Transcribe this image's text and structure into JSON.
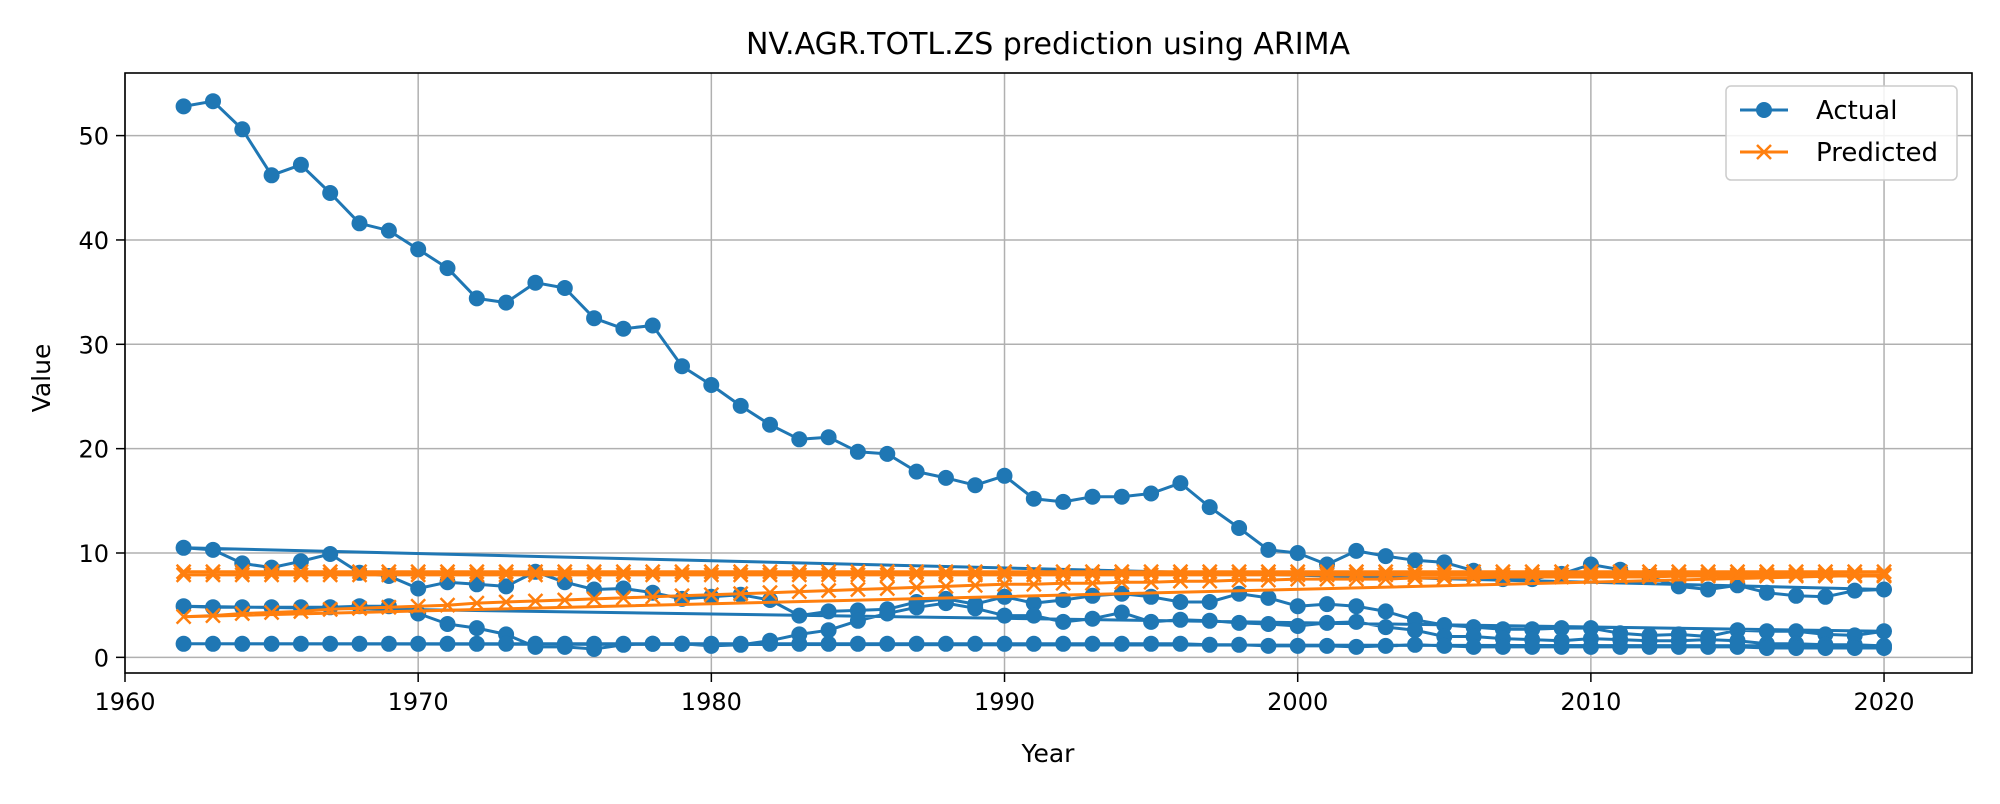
{
  "chart_data": {
    "type": "line",
    "title": "NV.AGR.TOTL.ZS prediction using ARIMA",
    "xlabel": "Year",
    "ylabel": "Value",
    "xlim": [
      1960,
      2023
    ],
    "ylim": [
      -1.5,
      56
    ],
    "xticks": [
      1960,
      1970,
      1980,
      1990,
      2000,
      2010,
      2020
    ],
    "yticks": [
      0,
      10,
      20,
      30,
      40,
      50
    ],
    "grid": true,
    "legend_position": "top-right",
    "colors": {
      "actual": "#1f77b4",
      "predicted": "#ff7f0e"
    },
    "actual": {
      "name": "Actual",
      "marker": "circle",
      "segments": [
        {
          "x": [
            1962,
            1963,
            1964,
            1965,
            1966,
            1967,
            1968,
            1969,
            1970,
            1971,
            1972,
            1973,
            1974,
            1975,
            1976,
            1977,
            1978,
            1979,
            1980,
            1981,
            1982,
            1983,
            1984,
            1985,
            1986,
            1987,
            1988,
            1989,
            1990,
            1991,
            1992,
            1993,
            1994,
            1995,
            1996,
            1997,
            1998,
            1999,
            2000,
            2001,
            2002,
            2003,
            2004,
            2005,
            2006,
            2007,
            2008,
            2009,
            2010,
            2011,
            2012,
            2013,
            2014,
            2015,
            2016,
            2017,
            2018,
            2019,
            2020
          ],
          "y": [
            52.8,
            53.3,
            50.6,
            46.2,
            47.2,
            44.5,
            41.6,
            40.9,
            39.1,
            37.3,
            34.4,
            34.0,
            35.9,
            35.4,
            32.5,
            31.5,
            31.8,
            27.9,
            26.1,
            24.1,
            22.3,
            20.9,
            21.1,
            19.7,
            19.5,
            17.8,
            17.2,
            16.5,
            17.4,
            15.2,
            14.9,
            15.4,
            15.4,
            15.7,
            16.7,
            14.4,
            12.4,
            10.3,
            10.0,
            8.9,
            10.2,
            9.7,
            9.3,
            9.1,
            8.3,
            7.5,
            7.5,
            8.0,
            8.9,
            8.4,
            7.7,
            6.8,
            6.5,
            6.9,
            6.2,
            5.9,
            5.8,
            6.4,
            6.5
          ]
        },
        {
          "x": [
            1962,
            1963,
            1964,
            1965,
            1966,
            1967,
            1968,
            1969,
            1970,
            1971,
            1972,
            1973,
            1974,
            1975,
            1976,
            1977,
            1978,
            1979,
            1980,
            1981,
            1982,
            1983,
            1984,
            1985,
            1986,
            1987,
            1988,
            1989,
            1990,
            1991,
            1992,
            1993,
            1994,
            1995,
            1996,
            1997,
            1998,
            1999,
            2000,
            2001,
            2002,
            2003,
            2004,
            2005,
            2006,
            2007,
            2008,
            2009,
            2010,
            2011,
            2012,
            2013,
            2014,
            2015,
            2016,
            2017,
            2018,
            2019,
            2020
          ],
          "y": [
            10.5,
            10.3,
            9.0,
            8.6,
            9.2,
            9.9,
            8.1,
            7.8,
            6.6,
            7.2,
            7.0,
            6.8,
            8.2,
            7.2,
            6.5,
            6.6,
            6.2,
            5.6,
            5.8,
            6.0,
            5.5,
            4.0,
            4.4,
            4.5,
            4.6,
            5.3,
            5.6,
            5.1,
            5.8,
            5.2,
            5.5,
            5.9,
            6.1,
            5.8,
            5.3,
            5.3,
            6.1,
            5.7,
            4.9,
            5.1,
            4.9,
            4.4,
            3.6,
            3.1,
            2.9,
            2.7,
            2.7,
            2.8,
            2.8,
            2.3,
            2.1,
            2.2,
            2.0,
            2.6,
            2.5,
            2.5,
            2.2,
            2.1,
            2.5
          ]
        },
        {
          "x": [
            1962,
            1963,
            1964,
            1965,
            1966,
            1967,
            1968,
            1969,
            1970,
            1971,
            1972,
            1973,
            1974,
            1975,
            1976,
            1977,
            1978,
            1979,
            1980,
            1981,
            1982,
            1983,
            1984,
            1985,
            1986,
            1987,
            1988,
            1989,
            1990,
            1991,
            1992,
            1993,
            1994,
            1995,
            1996,
            1997,
            1998,
            1999,
            2000,
            2001,
            2002,
            2003,
            2004,
            2005,
            2006,
            2007,
            2008,
            2009,
            2010,
            2011,
            2012,
            2013,
            2014,
            2015,
            2016,
            2017,
            2018,
            2019,
            2020
          ],
          "y": [
            4.9,
            4.8,
            4.8,
            4.8,
            4.8,
            4.8,
            4.9,
            4.9,
            4.2,
            3.2,
            2.8,
            2.2,
            1.0,
            1.0,
            0.8,
            1.2,
            1.3,
            1.3,
            1.1,
            1.2,
            1.6,
            2.2,
            2.6,
            3.5,
            4.2,
            4.8,
            5.2,
            4.7,
            4.0,
            4.0,
            3.4,
            3.7,
            4.3,
            3.4,
            3.6,
            3.5,
            3.3,
            3.2,
            3.0,
            3.3,
            3.4,
            2.9,
            2.6,
            2.0,
            2.0,
            1.8,
            1.7,
            1.6,
            1.8,
            1.7,
            1.6,
            1.6,
            1.7,
            1.6,
            1.3,
            1.3,
            1.2,
            1.2,
            1.1
          ]
        },
        {
          "x": [
            1962,
            1963,
            1964,
            1965,
            1966,
            1967,
            1968,
            1969,
            1970,
            1971,
            1972,
            1973,
            1974,
            1975,
            1976,
            1977,
            1978,
            1979,
            1980,
            1981,
            1982,
            1983,
            1984,
            1985,
            1986,
            1987,
            1988,
            1989,
            1990,
            1991,
            1992,
            1993,
            1994,
            1995,
            1996,
            1997,
            1998,
            1999,
            2000,
            2001,
            2002,
            2003,
            2004,
            2005,
            2006,
            2007,
            2008,
            2009,
            2010,
            2011,
            2012,
            2013,
            2014,
            2015,
            2016,
            2017,
            2018,
            2019,
            2020
          ],
          "y": [
            1.3,
            1.3,
            1.3,
            1.3,
            1.3,
            1.3,
            1.3,
            1.3,
            1.3,
            1.3,
            1.3,
            1.3,
            1.3,
            1.3,
            1.3,
            1.3,
            1.3,
            1.3,
            1.3,
            1.3,
            1.3,
            1.3,
            1.3,
            1.3,
            1.3,
            1.3,
            1.3,
            1.3,
            1.3,
            1.3,
            1.3,
            1.3,
            1.3,
            1.3,
            1.3,
            1.2,
            1.2,
            1.1,
            1.1,
            1.1,
            1.0,
            1.1,
            1.2,
            1.1,
            1.0,
            1.0,
            1.0,
            1.0,
            1.0,
            1.0,
            1.0,
            1.0,
            1.0,
            1.0,
            0.9,
            0.9,
            0.9,
            0.9,
            0.9
          ]
        }
      ]
    },
    "predicted": {
      "name": "Predicted",
      "marker": "x",
      "segments": [
        {
          "x": [
            1962,
            1963,
            1964,
            1965,
            1966,
            1967,
            1968,
            1969,
            1970,
            1971,
            1972,
            1973,
            1974,
            1975,
            1976,
            1977,
            1978,
            1979,
            1980,
            1981,
            1982,
            1983,
            1984,
            1985,
            1986,
            1987,
            1988,
            1989,
            1990,
            1991,
            1992,
            1993,
            1994,
            1995,
            1996,
            1997,
            1998,
            1999,
            2000,
            2001,
            2002,
            2003,
            2004,
            2005,
            2006,
            2007,
            2008,
            2009,
            2010,
            2011,
            2012,
            2013,
            2014,
            2015,
            2016,
            2017,
            2018,
            2019,
            2020
          ],
          "y": [
            8.2,
            8.2,
            8.2,
            8.2,
            8.2,
            8.2,
            8.2,
            8.2,
            8.2,
            8.2,
            8.2,
            8.2,
            8.2,
            8.2,
            8.2,
            8.2,
            8.2,
            8.2,
            8.2,
            8.2,
            8.2,
            8.2,
            8.2,
            8.2,
            8.2,
            8.2,
            8.2,
            8.2,
            8.2,
            8.2,
            8.2,
            8.2,
            8.2,
            8.2,
            8.2,
            8.2,
            8.2,
            8.2,
            8.2,
            8.2,
            8.2,
            8.2,
            8.2,
            8.2,
            8.2,
            8.2,
            8.2,
            8.2,
            8.2,
            8.2,
            8.2,
            8.2,
            8.2,
            8.2,
            8.2,
            8.2,
            8.2,
            8.2,
            8.2
          ]
        },
        {
          "x": [
            1962,
            1963,
            1964,
            1965,
            1966,
            1967,
            1968,
            1969,
            1970,
            1971,
            1972,
            1973,
            1974,
            1975,
            1976,
            1977,
            1978,
            1979,
            1980,
            1981,
            1982,
            1983,
            1984,
            1985,
            1986,
            1987,
            1988,
            1989,
            1990,
            1991,
            1992,
            1993,
            1994,
            1995,
            1996,
            1997,
            1998,
            1999,
            2000,
            2001,
            2002,
            2003,
            2004,
            2005,
            2006,
            2007,
            2008,
            2009,
            2010,
            2011,
            2012,
            2013,
            2014,
            2015,
            2016,
            2017,
            2018,
            2019,
            2020
          ],
          "y": [
            7.9,
            7.9,
            7.9,
            7.9,
            7.9,
            7.9,
            7.9,
            7.9,
            7.9,
            7.9,
            7.9,
            7.9,
            7.9,
            7.9,
            7.9,
            7.9,
            7.9,
            7.9,
            7.9,
            7.9,
            7.9,
            7.9,
            7.9,
            7.9,
            7.9,
            7.9,
            7.9,
            7.9,
            7.9,
            7.9,
            7.9,
            7.9,
            7.9,
            7.9,
            7.9,
            7.9,
            7.9,
            7.9,
            7.9,
            7.9,
            7.9,
            7.9,
            7.9,
            7.9,
            7.9,
            7.9,
            7.9,
            7.9,
            7.9,
            7.9,
            7.9,
            7.9,
            7.9,
            7.9,
            7.9,
            7.9,
            7.9,
            7.9,
            7.9
          ]
        },
        {
          "x": [
            1962,
            1963,
            1964,
            1965,
            1966,
            1967,
            1968,
            1969,
            1970,
            1971,
            1972,
            1973,
            1974,
            1975,
            1976,
            1977,
            1978,
            1979,
            1980,
            1981,
            1982,
            1983,
            1984,
            1985,
            1986,
            1987,
            1988,
            1989,
            1990,
            1991,
            1992,
            1993,
            1994,
            1995,
            1996,
            1997,
            1998,
            1999,
            2000,
            2001,
            2002,
            2003,
            2004,
            2005,
            2006,
            2007,
            2008,
            2009,
            2010,
            2011,
            2012,
            2013,
            2014,
            2015,
            2016,
            2017,
            2018,
            2019,
            2020
          ],
          "y": [
            3.9,
            4.0,
            4.2,
            4.3,
            4.4,
            4.6,
            4.7,
            4.8,
            4.9,
            5.0,
            5.2,
            5.3,
            5.4,
            5.5,
            5.6,
            5.7,
            5.8,
            5.9,
            6.0,
            6.1,
            6.2,
            6.3,
            6.4,
            6.5,
            6.6,
            6.7,
            6.8,
            6.9,
            7.0,
            7.0,
            7.1,
            7.1,
            7.2,
            7.2,
            7.3,
            7.3,
            7.4,
            7.4,
            7.5,
            7.5,
            7.5,
            7.5,
            7.6,
            7.6,
            7.6,
            7.7,
            7.7,
            7.7,
            7.7,
            7.7,
            7.7,
            7.8,
            7.8,
            7.8,
            7.8,
            7.8,
            7.8,
            7.8,
            7.8
          ]
        }
      ]
    }
  }
}
